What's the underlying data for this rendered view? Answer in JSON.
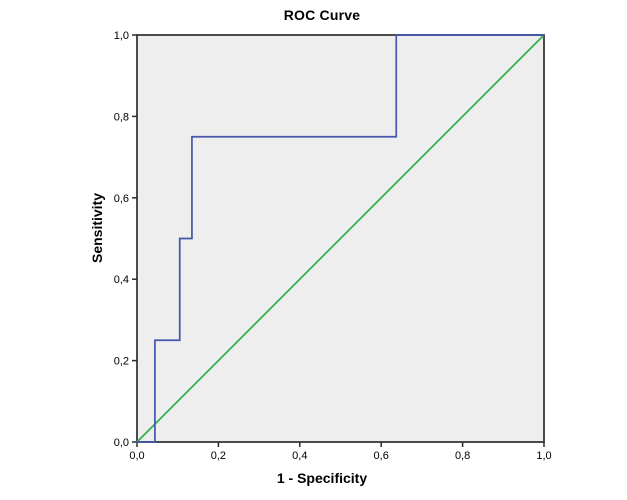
{
  "chart_data": {
    "type": "line",
    "title": "ROC Curve",
    "xlabel": "1 - Specificity",
    "ylabel": "Sensitivity",
    "xlim": [
      0.0,
      1.0
    ],
    "ylim": [
      0.0,
      1.0
    ],
    "grid": false,
    "legend": "none",
    "x_ticks": [
      {
        "value": 0.0,
        "label": "0,0"
      },
      {
        "value": 0.2,
        "label": "0,2"
      },
      {
        "value": 0.4,
        "label": "0,4"
      },
      {
        "value": 0.6,
        "label": "0,6"
      },
      {
        "value": 0.8,
        "label": "0,8"
      },
      {
        "value": 1.0,
        "label": "1,0"
      }
    ],
    "y_ticks": [
      {
        "value": 0.0,
        "label": "0,0"
      },
      {
        "value": 0.2,
        "label": "0,2"
      },
      {
        "value": 0.4,
        "label": "0,4"
      },
      {
        "value": 0.6,
        "label": "0,6"
      },
      {
        "value": 0.8,
        "label": "0,8"
      },
      {
        "value": 1.0,
        "label": "1,0"
      }
    ],
    "series": [
      {
        "name": "roc-curve",
        "color": "#4456aa",
        "points": [
          [
            0.0,
            0.0
          ],
          [
            0.044,
            0.0
          ],
          [
            0.044,
            0.25
          ],
          [
            0.105,
            0.25
          ],
          [
            0.105,
            0.5
          ],
          [
            0.135,
            0.5
          ],
          [
            0.135,
            0.75
          ],
          [
            0.637,
            0.75
          ],
          [
            0.637,
            1.0
          ],
          [
            1.0,
            1.0
          ]
        ]
      },
      {
        "name": "reference-line",
        "color": "#2eb14c",
        "points": [
          [
            0.0,
            0.0
          ],
          [
            1.0,
            1.0
          ]
        ]
      }
    ],
    "colors": {
      "plot_background": "#efeeee",
      "frame": "#383838",
      "tick": "#2b2b2b",
      "text": "#000000"
    }
  }
}
